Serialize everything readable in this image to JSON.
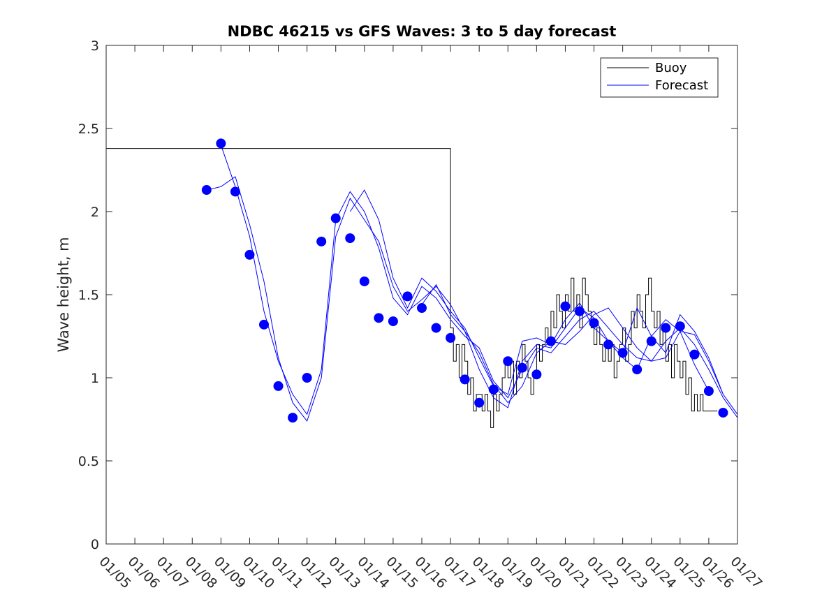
{
  "chart_data": {
    "type": "line",
    "title": "NDBC 46215 vs GFS Waves: 3 to 5 day forecast",
    "xlabel": "",
    "ylabel": "Wave height, m",
    "xlim": [
      0,
      22
    ],
    "ylim": [
      0,
      3
    ],
    "x_ticks": [
      0,
      1,
      2,
      3,
      4,
      5,
      6,
      7,
      8,
      9,
      10,
      11,
      12,
      13,
      14,
      15,
      16,
      17,
      18,
      19,
      20,
      21,
      22
    ],
    "x_tick_labels": [
      "01/05",
      "01/06",
      "01/07",
      "01/08",
      "01/09",
      "01/10",
      "01/11",
      "01/12",
      "01/13",
      "01/14",
      "01/15",
      "01/16",
      "01/17",
      "01/18",
      "01/19",
      "01/20",
      "01/21",
      "01/22",
      "01/23",
      "01/24",
      "01/25",
      "01/26",
      "01/27"
    ],
    "y_ticks": [
      0,
      0.5,
      1,
      1.5,
      2,
      2.5,
      3
    ],
    "y_tick_labels": [
      "0",
      "0.5",
      "1",
      "1.5",
      "2",
      "2.5",
      "3"
    ],
    "legend": {
      "position": "top-right",
      "entries": [
        {
          "name": "Buoy",
          "color": "#000000"
        },
        {
          "name": "Forecast",
          "color": "#0000ff"
        }
      ]
    },
    "colors": {
      "buoy": "#000000",
      "forecast": "#0000ff"
    },
    "series": [
      {
        "name": "Buoy",
        "kind": "line",
        "x": [
          0,
          12.0,
          12.1,
          12.2,
          12.3,
          12.4,
          12.5,
          12.6,
          12.7,
          12.8,
          12.9,
          13.0,
          13.1,
          13.2,
          13.3,
          13.4,
          13.5,
          13.6,
          13.7,
          13.8,
          13.9,
          14.0,
          14.1,
          14.2,
          14.3,
          14.4,
          14.5,
          14.6,
          14.7,
          14.8,
          14.9,
          15.0,
          15.1,
          15.2,
          15.3,
          15.4,
          15.5,
          15.6,
          15.7,
          15.8,
          15.9,
          16.0,
          16.1,
          16.2,
          16.3,
          16.4,
          16.5,
          16.6,
          16.7,
          16.8,
          16.9,
          17.0,
          17.1,
          17.2,
          17.3,
          17.4,
          17.5,
          17.6,
          17.7,
          17.8,
          17.9,
          18.0,
          18.1,
          18.2,
          18.3,
          18.4,
          18.5,
          18.6,
          18.7,
          18.8,
          18.9,
          19.0,
          19.1,
          19.2,
          19.3,
          19.4,
          19.5,
          19.6,
          19.7,
          19.8,
          19.9,
          20.0,
          20.1,
          20.2,
          20.3,
          20.4,
          20.5,
          20.6,
          20.7,
          20.8,
          20.9,
          21.0,
          21.1,
          21.2,
          21.3
        ],
        "y": [
          2.38,
          1.3,
          1.1,
          1.2,
          1.0,
          1.2,
          1.1,
          0.9,
          1.0,
          0.8,
          0.9,
          0.9,
          0.8,
          0.9,
          0.8,
          0.7,
          0.9,
          0.8,
          0.9,
          1.0,
          1.1,
          1.0,
          1.1,
          0.9,
          1.1,
          1.0,
          1.2,
          1.1,
          1.0,
          0.9,
          1.0,
          1.2,
          1.1,
          1.2,
          1.3,
          1.2,
          1.4,
          1.3,
          1.5,
          1.4,
          1.3,
          1.5,
          1.4,
          1.6,
          1.4,
          1.5,
          1.3,
          1.6,
          1.5,
          1.4,
          1.3,
          1.2,
          1.3,
          1.2,
          1.1,
          1.2,
          1.1,
          1.2,
          1.0,
          1.1,
          1.2,
          1.3,
          1.1,
          1.2,
          1.4,
          1.3,
          1.5,
          1.4,
          1.3,
          1.5,
          1.6,
          1.4,
          1.3,
          1.4,
          1.2,
          1.3,
          1.1,
          1.2,
          1.0,
          1.2,
          1.1,
          1.0,
          1.1,
          0.9,
          1.0,
          0.8,
          0.9,
          0.8,
          0.9,
          0.8,
          0.8,
          0.8,
          0.8,
          0.8,
          0.8
        ]
      },
      {
        "name": "Forecast run 1",
        "kind": "line",
        "x": [
          3.5,
          4.0,
          4.5,
          5.0,
          5.5,
          6.0,
          6.5,
          7.0,
          7.5,
          8.0,
          8.5,
          9.0,
          9.5,
          10.0,
          10.5,
          11.0,
          11.5,
          12.0,
          12.5,
          13.0,
          13.5,
          14.0,
          14.5,
          15.0,
          15.5,
          16.0,
          16.5,
          17.0,
          17.5,
          18.0,
          18.5,
          19.0,
          19.5,
          20.0,
          20.5,
          21.0,
          21.5,
          22.0
        ],
        "y": [
          2.13,
          2.15,
          2.21,
          1.92,
          1.58,
          1.12,
          0.85,
          0.74,
          1.0,
          1.85,
          2.08,
          1.95,
          1.82,
          1.55,
          1.4,
          1.47,
          1.55,
          1.44,
          1.28,
          1.15,
          0.96,
          0.85,
          0.95,
          1.15,
          1.22,
          1.2,
          1.28,
          1.38,
          1.42,
          1.3,
          1.18,
          1.1,
          1.12,
          1.28,
          1.26,
          1.1,
          0.9,
          0.78
        ]
      },
      {
        "name": "Forecast run 2",
        "kind": "line",
        "x": [
          4.0,
          4.5,
          5.0,
          5.5,
          6.0,
          6.5,
          7.0,
          7.5,
          8.0,
          8.5,
          9.0,
          9.5,
          10.0,
          10.5,
          11.0,
          11.5,
          12.0,
          12.5,
          13.0,
          13.5,
          14.0,
          14.5,
          15.0,
          15.5,
          16.0,
          16.5,
          17.0,
          17.5,
          18.0,
          18.5,
          19.0,
          19.5,
          20.0,
          20.5,
          21.0,
          21.5,
          22.0
        ],
        "y": [
          2.4,
          2.15,
          1.85,
          1.4,
          1.1,
          0.9,
          0.78,
          1.05,
          1.95,
          2.12,
          2.0,
          1.78,
          1.48,
          1.38,
          1.55,
          1.48,
          1.35,
          1.25,
          1.18,
          0.98,
          0.88,
          1.05,
          1.18,
          1.15,
          1.25,
          1.35,
          1.4,
          1.3,
          1.2,
          1.12,
          1.1,
          1.22,
          1.3,
          1.2,
          1.05,
          0.88,
          0.76
        ]
      },
      {
        "name": "Forecast run 3",
        "kind": "line",
        "x": [
          8.5,
          9.0,
          9.5,
          10.0,
          10.5,
          11.0,
          11.5,
          12.0,
          12.5,
          13.0,
          13.5,
          14.0,
          14.5,
          15.0,
          15.5,
          16.0,
          16.5,
          17.0,
          17.5,
          18.0,
          18.5,
          19.0,
          19.5,
          20.0,
          20.5,
          21.0,
          21.5
        ],
        "y": [
          2.0,
          2.13,
          1.95,
          1.6,
          1.42,
          1.6,
          1.52,
          1.4,
          1.3,
          1.12,
          0.95,
          0.9,
          1.22,
          1.24,
          1.2,
          1.35,
          1.45,
          1.3,
          1.22,
          1.15,
          1.42,
          1.25,
          1.15,
          1.38,
          1.28,
          1.12,
          0.9
        ]
      },
      {
        "name": "Forecast run 4",
        "kind": "line",
        "x": [
          11.0,
          11.5,
          12.0,
          12.5,
          13.0,
          13.5,
          14.0,
          14.5,
          15.0,
          15.5,
          16.0,
          16.5,
          17.0,
          17.5,
          18.0,
          18.5,
          19.0,
          19.5,
          20.0,
          20.5,
          21.0
        ],
        "y": [
          1.44,
          1.56,
          1.38,
          1.28,
          1.05,
          0.88,
          0.82,
          1.1,
          1.2,
          1.18,
          1.3,
          1.42,
          1.36,
          1.22,
          1.12,
          1.05,
          1.25,
          1.35,
          1.28,
          1.08,
          0.92
        ]
      },
      {
        "name": "Forecast",
        "kind": "markers",
        "x": [
          3.5,
          4.0,
          4.5,
          5.0,
          5.5,
          6.0,
          6.5,
          7.0,
          7.5,
          8.0,
          8.5,
          9.0,
          9.5,
          10.0,
          10.5,
          11.0,
          11.5,
          12.0,
          12.5,
          13.0,
          13.5,
          14.0,
          14.5,
          15.0,
          15.5,
          16.0,
          16.5,
          17.0,
          17.5,
          18.0,
          18.5,
          19.0,
          19.5,
          20.0,
          20.5,
          21.0,
          21.5
        ],
        "y": [
          2.13,
          2.41,
          2.12,
          1.74,
          1.32,
          0.95,
          0.76,
          1.0,
          1.82,
          1.96,
          1.84,
          1.58,
          1.36,
          1.34,
          1.49,
          1.42,
          1.3,
          1.24,
          0.99,
          0.85,
          0.93,
          1.1,
          1.06,
          1.02,
          1.22,
          1.43,
          1.4,
          1.33,
          1.2,
          1.15,
          1.05,
          1.22,
          1.3,
          1.31,
          1.14,
          0.92,
          0.79
        ]
      }
    ]
  }
}
